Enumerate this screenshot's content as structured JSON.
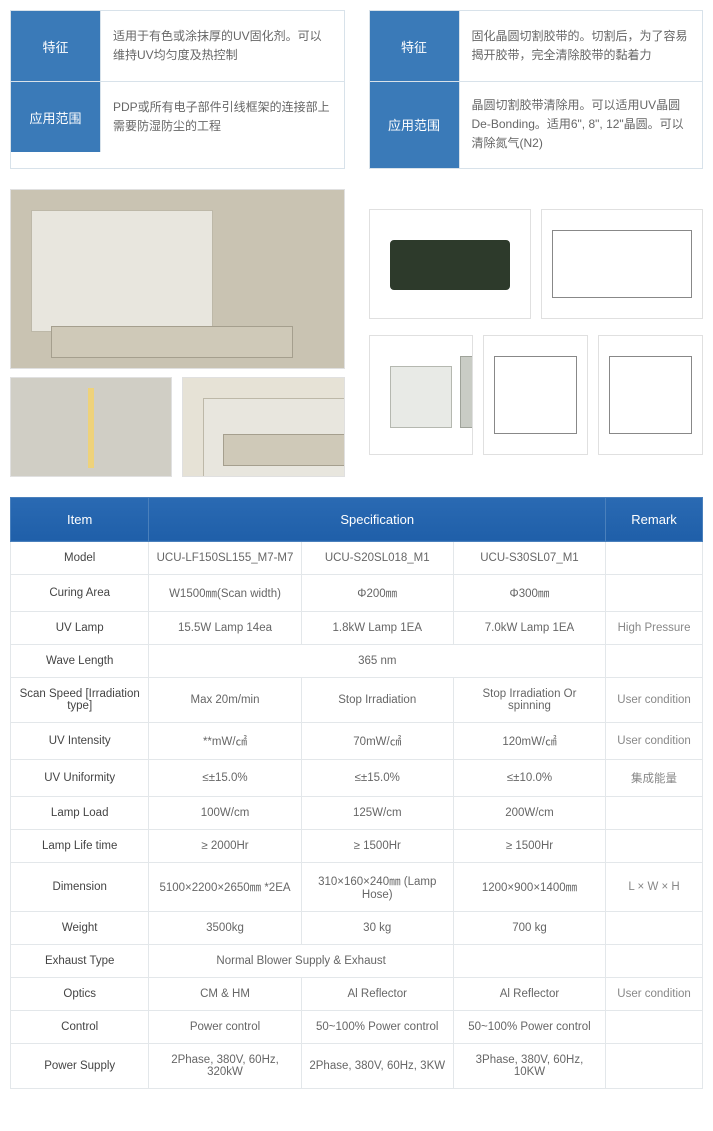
{
  "top": {
    "left": {
      "r1_label": "特征",
      "r1_value": "适用于有色或涂抹厚的UV固化剂。可以维持UV均匀度及热控制",
      "r2_label": "应用范围",
      "r2_value": "PDP或所有电子部件引线框架的连接部上需要防湿防尘的工程"
    },
    "right": {
      "r1_label": "特征",
      "r1_value": "固化晶圆切割胶带的。切割后，为了容易揭开胶带，完全清除胶带的黏着力",
      "r2_label": "应用范围",
      "r2_value": "晶圆切割胶带清除用。可以适用UV晶圆De-Bonding。适用6\", 8\", 12\"晶圆。可以清除氮气(N2)"
    }
  },
  "spec": {
    "headers": {
      "item": "Item",
      "spec": "Specification",
      "remark": "Remark"
    },
    "rows": [
      {
        "k": "Model",
        "c1": "UCU-LF150SL155_M7-M7",
        "c2": "UCU-S20SL018_M1",
        "c3": "UCU-S30SL07_M1",
        "r": ""
      },
      {
        "k": "Curing Area",
        "c1": "W1500㎜(Scan width)",
        "c2": "Φ200㎜",
        "c3": "Φ300㎜",
        "r": ""
      },
      {
        "k": "UV Lamp",
        "c1": "15.5W Lamp 14ea",
        "c2": "1.8kW Lamp 1EA",
        "c3": "7.0kW Lamp 1EA",
        "r": "High Pressure"
      },
      {
        "k": "Wave Length",
        "merged": "365 nm",
        "r": ""
      },
      {
        "k": "Scan Speed [Irradiation type]",
        "c1": "Max 20m/min",
        "c2": "Stop Irradiation",
        "c3": "Stop Irradiation Or spinning",
        "r": "User condition"
      },
      {
        "k": "UV Intensity",
        "c1": "**mW/㎠",
        "c2": "70mW/㎠",
        "c3": "120mW/㎠",
        "r": "User condition"
      },
      {
        "k": "UV Uniformity",
        "c1": "≤±15.0%",
        "c2": "≤±15.0%",
        "c3": "≤±10.0%",
        "r": "集成能量"
      },
      {
        "k": "Lamp Load",
        "c1": "100W/cm",
        "c2": "125W/cm",
        "c3": "200W/cm",
        "r": ""
      },
      {
        "k": "Lamp Life time",
        "c1": "≥ 2000Hr",
        "c2": "≥ 1500Hr",
        "c3": "≥ 1500Hr",
        "r": ""
      },
      {
        "k": "Dimension",
        "c1": "5100×2200×2650㎜ *2EA",
        "c2": "310×160×240㎜ (Lamp Hose)",
        "c3": "1200×900×1400㎜",
        "r": "L × W × H"
      },
      {
        "k": "Weight",
        "c1": "3500kg",
        "c2": "30 kg",
        "c3": "700 kg",
        "r": ""
      },
      {
        "k": "Exhaust Type",
        "merged2": "Normal Blower Supply & Exhaust",
        "c3": "",
        "r": ""
      },
      {
        "k": "Optics",
        "c1": "CM & HM",
        "c2": "Al Reflector",
        "c3": "Al Reflector",
        "r": "User condition"
      },
      {
        "k": "Control",
        "c1": "Power control",
        "c2": "50~100% Power control",
        "c3": "50~100% Power control",
        "r": ""
      },
      {
        "k": "Power Supply",
        "c1": "2Phase, 380V, 60Hz, 320kW",
        "c2": "2Phase, 380V, 60Hz, 3KW",
        "c3": "3Phase, 380V, 60Hz, 10KW",
        "r": ""
      }
    ]
  },
  "style": {
    "header_bg": "#1f5fa9",
    "label_bg": "#3a7ab8",
    "border": "#e3e7ea",
    "text": "#666666"
  }
}
